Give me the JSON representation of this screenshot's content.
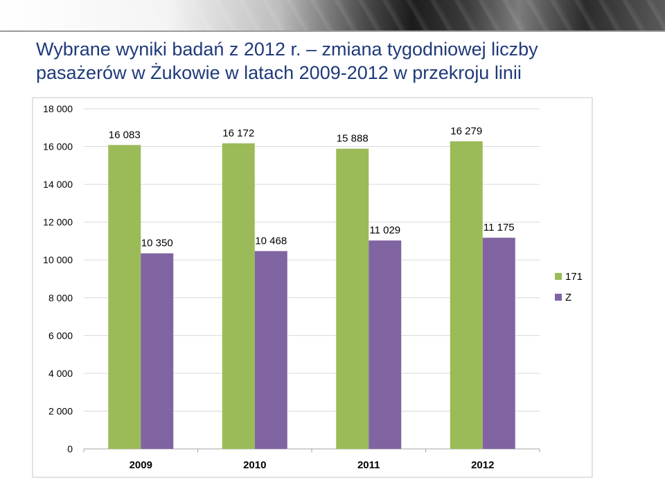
{
  "slide": {
    "title_line1": "Wybrane wyniki badań z 2012 r. – zmiana tygodniowej liczby",
    "title_line2": "pasażerów w Żukowie w latach 2009-2012 w przekroju linii"
  },
  "chart_data": {
    "type": "bar",
    "categories": [
      "2009",
      "2010",
      "2011",
      "2012"
    ],
    "series": [
      {
        "name": "171",
        "values": [
          16083,
          16172,
          15888,
          16279
        ],
        "labels": [
          "16 083",
          "16 172",
          "15 888",
          "16 279"
        ],
        "color": "#9BBB59"
      },
      {
        "name": "Z",
        "values": [
          10350,
          10468,
          11029,
          11175
        ],
        "labels": [
          "10 350",
          "10 468",
          "11 029",
          "11 175"
        ],
        "color": "#8064A2"
      }
    ],
    "ylim": [
      0,
      18000
    ],
    "yticks": [
      0,
      2000,
      4000,
      6000,
      8000,
      10000,
      12000,
      14000,
      16000,
      18000
    ],
    "ytick_labels": [
      "0",
      "2 000",
      "4 000",
      "6 000",
      "8 000",
      "10 000",
      "12 000",
      "14 000",
      "16 000",
      "18 000"
    ],
    "grid": "horizontal",
    "legend": "right",
    "xlabel": "",
    "ylabel": ""
  }
}
